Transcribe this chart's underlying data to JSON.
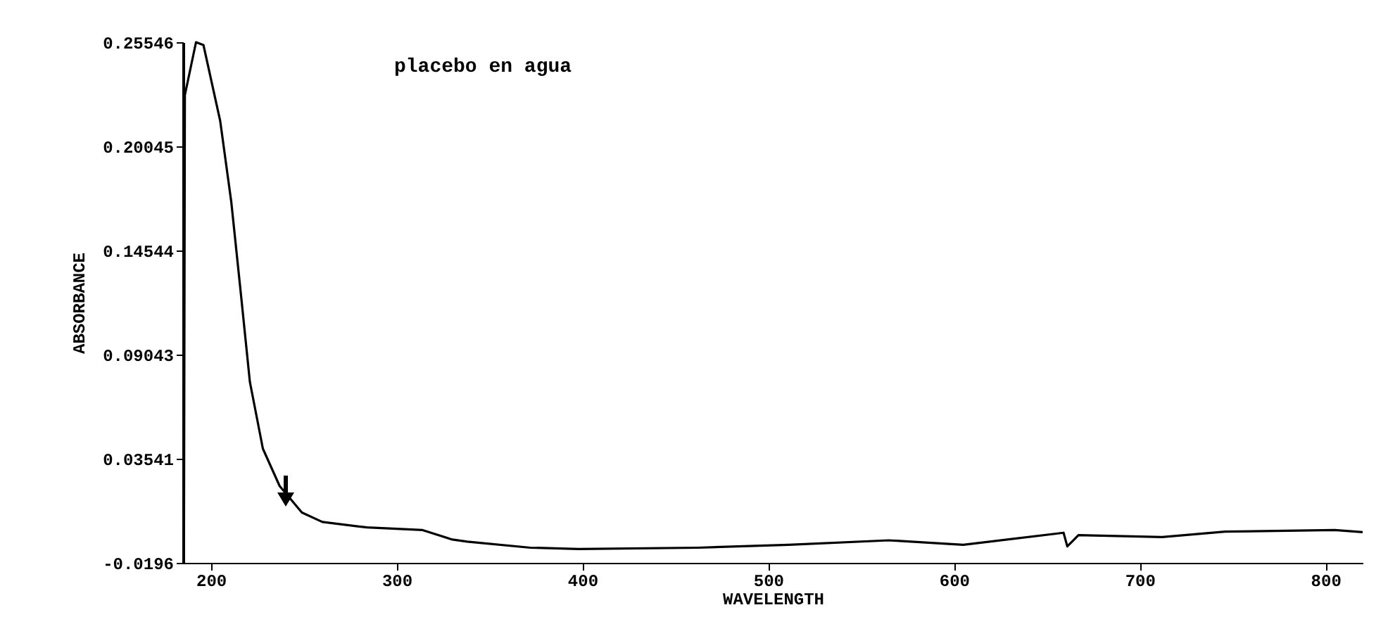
{
  "chart_data": {
    "type": "line",
    "xlabel": "WAVELENGTH",
    "ylabel": "ABSORBANCE",
    "annotations": [
      "placebo en agua"
    ],
    "x": [
      185.5,
      186,
      192,
      196,
      205,
      211,
      216,
      221,
      228,
      237,
      249,
      260,
      284,
      314,
      330,
      338,
      372,
      398,
      462,
      511,
      565,
      605,
      659,
      661,
      667,
      712,
      746,
      805,
      820
    ],
    "series": [
      {
        "color": "#000000",
        "values": [
          -0.0196,
          0.2275,
          0.25546,
          0.254,
          0.214,
          0.171,
          0.124,
          0.076,
          0.0407,
          0.021,
          0.007,
          0.002,
          -0.0009,
          -0.0023,
          -0.0073,
          -0.0084,
          -0.0116,
          -0.0123,
          -0.0116,
          -0.0101,
          -0.0077,
          -0.0101,
          -0.0037,
          -0.0109,
          -0.005,
          -0.006,
          -0.0031,
          -0.0023,
          -0.0034
        ]
      }
    ],
    "xlim": [
      185,
      820
    ],
    "xticks": [
      200,
      300,
      400,
      500,
      600,
      700,
      800
    ],
    "ylim": [
      -0.0196,
      0.25546
    ],
    "yticks": [
      -0.0196,
      0.03541,
      0.09043,
      0.14544,
      0.20045,
      0.25546
    ],
    "grid": false,
    "marker": "none",
    "line_style": "solid"
  }
}
